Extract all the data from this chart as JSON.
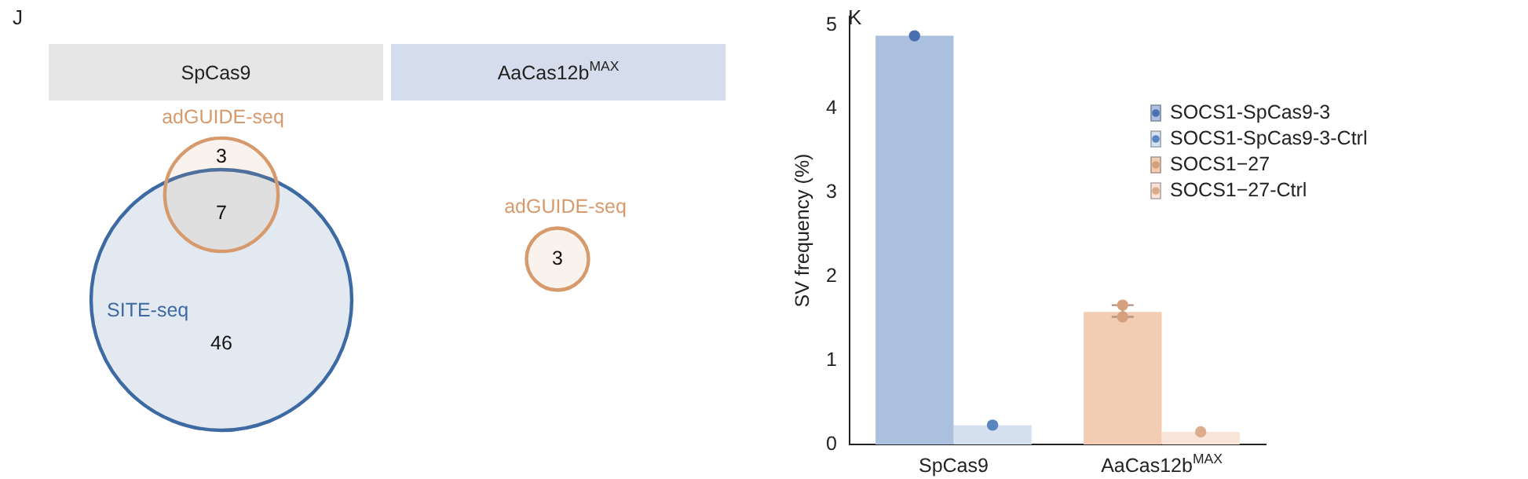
{
  "chart_data": [
    {
      "type": "other",
      "title": "J",
      "categories": [
        "SpCas9",
        "AaCas12b$^{MAX}$"
      ],
      "colors": [
        "#e6e6e6",
        "#d5dcec"
      ],
      "series": [
        {
          "name": "adGUIDE-seq",
          "color": "#d69a6c",
          "values": [
            3,
            3
          ],
          "value_labels": [
            "3",
            "3"
          ]
        },
        {
          "name": "SITE-seq",
          "color": "#3d6aa3",
          "values": [
            46,
            null
          ],
          "value_labels": [
            "46",
            null
          ]
        }
      ],
      "data_labels": true,
      "annotations": [
        "7"
      ]
    },
    {
      "type": "bar",
      "title": "K",
      "categories": [
        "SpCas9",
        "AaCas12b$^{MAX}$"
      ],
      "ylabel": "SV frequency (%)",
      "ylim": [
        0,
        5.1
      ],
      "yticks": [
        0,
        1,
        2,
        3,
        4,
        5
      ],
      "grid": false,
      "legend": "right",
      "series": [
        {
          "name": "SOCS1-SpCas9-3",
          "color": "#aac0de",
          "values": [
            4.87,
            null
          ]
        },
        {
          "name": "SOCS1-SpCas9-3-Ctrl",
          "color": "#d5e1ee",
          "values": [
            0.23,
            null
          ]
        },
        {
          "name": "SOCS1−27",
          "color": "#f2cdb4",
          "values": [
            null,
            1.58
          ],
          "errors": [
            null,
            [
              1.52,
              1.66
            ]
          ]
        },
        {
          "name": "SOCS1−27-Ctrl",
          "color": "#f8e4d8",
          "values": [
            null,
            0.15
          ]
        },
        {
          "type": "scatter",
          "color": "#4a6fb0",
          "x": [
            "SpCas9"
          ],
          "values": [
            4.87
          ]
        },
        {
          "type": "scatter",
          "color": "#5a86c0",
          "x": [
            "SpCas9"
          ],
          "values": [
            0.23
          ]
        },
        {
          "type": "scatter",
          "color": "#d6a07c",
          "x": [
            "AaCas12b$^{MAX}$",
            "AaCas12b$^{MAX}$"
          ],
          "values": [
            1.66,
            1.52
          ]
        },
        {
          "type": "scatter",
          "color": "#ddac8c",
          "x": [
            "AaCas12b$^{MAX}$"
          ],
          "values": [
            0.15
          ]
        }
      ]
    }
  ]
}
